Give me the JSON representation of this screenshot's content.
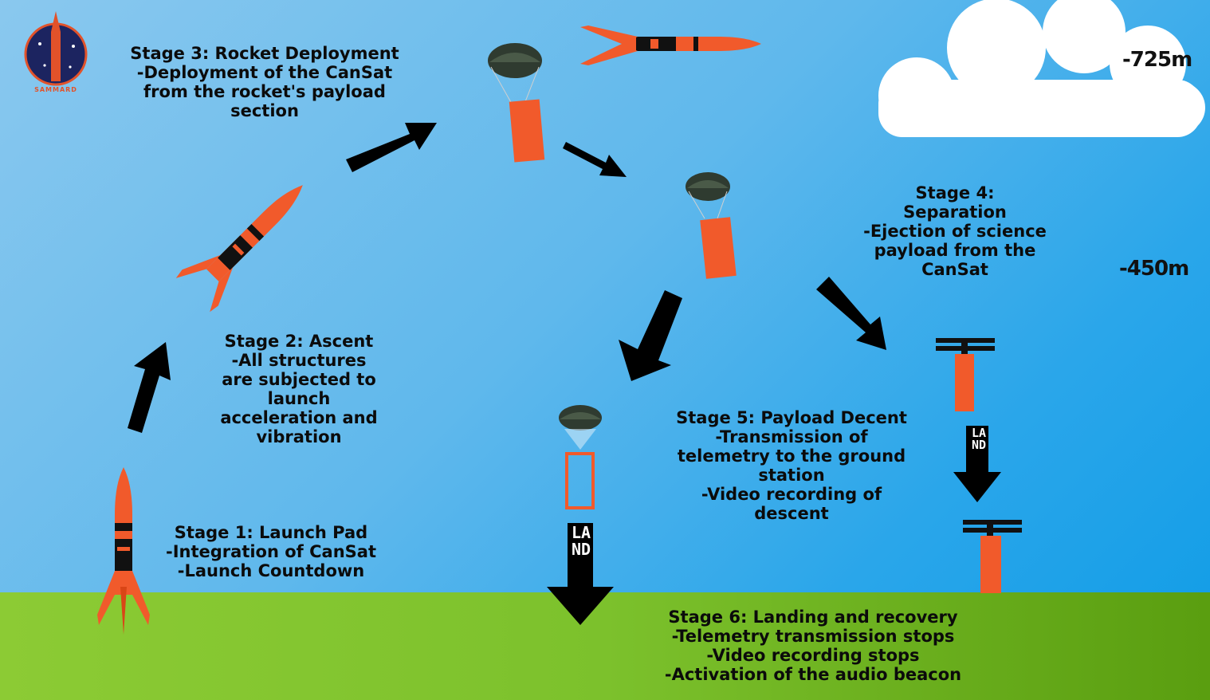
{
  "logo": {
    "text": "SAMMARD"
  },
  "stages": {
    "stage1": {
      "title": "Stage 1: Launch Pad",
      "lines": [
        "-Integration of CanSat",
        "-Launch Countdown"
      ]
    },
    "stage2": {
      "title": "Stage 2: Ascent",
      "lines": [
        "-All structures",
        "are subjected to",
        "launch",
        "acceleration and",
        "vibration"
      ]
    },
    "stage3": {
      "title": "Stage 3: Rocket Deployment",
      "lines": [
        "-Deployment of the CanSat",
        "from the rocket's payload",
        "section"
      ]
    },
    "stage4": {
      "title": "Stage 4:",
      "lines": [
        "Separation",
        "-Ejection of science",
        "payload from the",
        "CanSat"
      ]
    },
    "stage5": {
      "title": "Stage 5: Payload Decent",
      "lines": [
        "-Transmission of",
        "telemetry to the ground",
        "station",
        "-Video recording of",
        "descent"
      ]
    },
    "stage6": {
      "title": "Stage 6: Landing and recovery",
      "lines": [
        "-Telemetry transmission stops",
        "-Video recording stops",
        "-Activation of the audio beacon"
      ]
    }
  },
  "altitudes": {
    "high": "-725m",
    "mid": "-450m"
  },
  "land_label": "LAND",
  "colors": {
    "orange": "#f15a2b",
    "black": "#000000",
    "sky_light": "#8ac8ee",
    "sky_dark": "#0f9ce6",
    "grass": "#7cc12c"
  }
}
